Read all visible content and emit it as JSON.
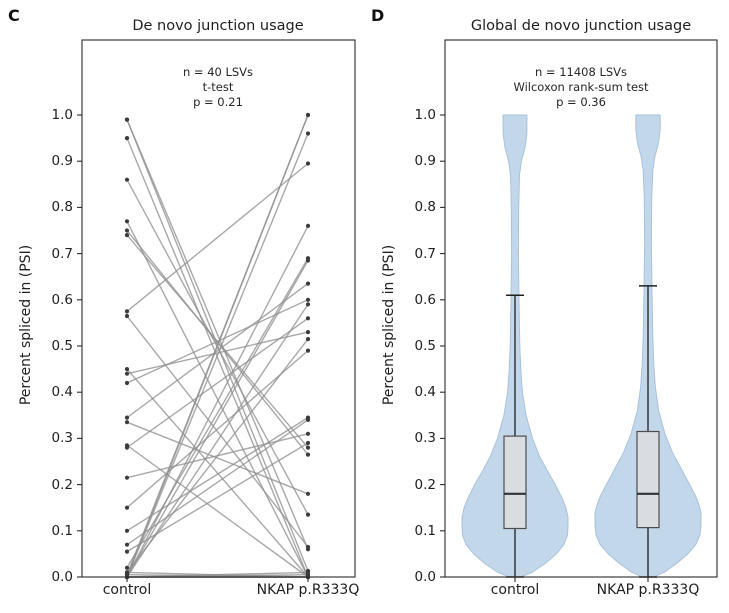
{
  "figure_background": "#ffffff",
  "style": {
    "pair_line_color": "#8f8f8f",
    "dot_color": "#3c3c3c",
    "violin_fill": "#c3d7ea",
    "violin_edge": "#a9c2dc",
    "box_fill": "#d9dde1",
    "box_edge": "#4d4d4d",
    "median_color": "#2e343b",
    "whisker_color": "#1f1f1f",
    "spine_color": "#2b2b2b"
  },
  "chart_data": [
    {
      "type": "line",
      "subtype": "paired-slope-chart",
      "panel_letter": "C",
      "title": "De novo junction usage",
      "annotation_lines": [
        "n = 40 LSVs",
        "t-test",
        "p = 0.21"
      ],
      "xlabel_categories": [
        "control",
        "NKAP p.R333Q"
      ],
      "ylabel": "Percent spliced in (PSI)",
      "ylim": [
        0.0,
        1.0
      ],
      "yticks": [
        0.0,
        0.1,
        0.2,
        0.3,
        0.4,
        0.5,
        0.6,
        0.7,
        0.8,
        0.9,
        1.0
      ],
      "grid": false,
      "pairs_control_to_variant": [
        [
          0.99,
          0.06
        ],
        [
          0.99,
          0.013
        ],
        [
          0.95,
          0.0
        ],
        [
          0.86,
          0.135
        ],
        [
          0.77,
          0.0
        ],
        [
          0.75,
          0.265
        ],
        [
          0.74,
          0.28
        ],
        [
          0.575,
          0.895
        ],
        [
          0.565,
          0.065
        ],
        [
          0.45,
          0.0
        ],
        [
          0.44,
          0.53
        ],
        [
          0.42,
          0.6
        ],
        [
          0.345,
          0.635
        ],
        [
          0.335,
          0.18
        ],
        [
          0.285,
          0.0
        ],
        [
          0.28,
          0.56
        ],
        [
          0.215,
          0.31
        ],
        [
          0.15,
          0.49
        ],
        [
          0.1,
          0.345
        ],
        [
          0.07,
          0.34
        ],
        [
          0.055,
          0.29
        ],
        [
          0.02,
          0.69
        ],
        [
          0.01,
          0.515
        ],
        [
          0.0,
          1.0
        ],
        [
          0.005,
          1.0
        ],
        [
          0.0,
          0.96
        ],
        [
          0.0,
          0.76
        ],
        [
          0.0,
          0.685
        ],
        [
          0.0,
          0.59
        ],
        [
          0.0,
          0.0
        ],
        [
          0.0,
          0.0
        ],
        [
          0.0,
          0.005
        ],
        [
          0.005,
          0.0
        ],
        [
          0.0,
          0.0
        ],
        [
          0.0,
          0.0
        ],
        [
          0.01,
          0.0
        ],
        [
          0.0,
          0.01
        ],
        [
          0.0,
          0.0
        ],
        [
          0.0,
          0.0
        ],
        [
          0.0,
          0.0
        ]
      ]
    },
    {
      "type": "area",
      "subtype": "violin-with-box",
      "panel_letter": "D",
      "title": "Global de novo junction usage",
      "annotation_lines": [
        "n = 11408 LSVs",
        "Wilcoxon rank-sum test",
        "p = 0.36"
      ],
      "xlabel_categories": [
        "control",
        "NKAP p.R333Q"
      ],
      "ylabel": "Percent spliced in (PSI)",
      "ylim": [
        0.0,
        1.0
      ],
      "yticks": [
        0.0,
        0.1,
        0.2,
        0.3,
        0.4,
        0.5,
        0.6,
        0.7,
        0.8,
        0.9,
        1.0
      ],
      "grid": false,
      "violins": [
        {
          "category": "control",
          "box": {
            "q1": 0.105,
            "median": 0.18,
            "q3": 0.305,
            "whisker_low": 0.0,
            "whisker_high": 0.61
          },
          "density_profile_psi_halfwidth": [
            [
              0.0,
              0.1
            ],
            [
              0.01,
              0.32
            ],
            [
              0.03,
              0.58
            ],
            [
              0.05,
              0.78
            ],
            [
              0.07,
              0.92
            ],
            [
              0.09,
              0.99
            ],
            [
              0.11,
              1.0
            ],
            [
              0.13,
              1.0
            ],
            [
              0.15,
              0.96
            ],
            [
              0.17,
              0.89
            ],
            [
              0.2,
              0.76
            ],
            [
              0.23,
              0.61
            ],
            [
              0.26,
              0.47
            ],
            [
              0.3,
              0.33
            ],
            [
              0.35,
              0.21
            ],
            [
              0.4,
              0.14
            ],
            [
              0.45,
              0.11
            ],
            [
              0.5,
              0.09
            ],
            [
              0.6,
              0.075
            ],
            [
              0.7,
              0.065
            ],
            [
              0.8,
              0.07
            ],
            [
              0.87,
              0.085
            ],
            [
              0.9,
              0.12
            ],
            [
              0.93,
              0.19
            ],
            [
              0.96,
              0.225
            ],
            [
              1.0,
              0.225
            ]
          ]
        },
        {
          "category": "NKAP p.R333Q",
          "box": {
            "q1": 0.107,
            "median": 0.18,
            "q3": 0.315,
            "whisker_low": 0.0,
            "whisker_high": 0.63
          },
          "density_profile_psi_halfwidth": [
            [
              0.0,
              0.1
            ],
            [
              0.01,
              0.3
            ],
            [
              0.03,
              0.55
            ],
            [
              0.05,
              0.75
            ],
            [
              0.07,
              0.9
            ],
            [
              0.09,
              0.98
            ],
            [
              0.11,
              1.0
            ],
            [
              0.14,
              1.0
            ],
            [
              0.16,
              0.95
            ],
            [
              0.18,
              0.88
            ],
            [
              0.21,
              0.74
            ],
            [
              0.24,
              0.6
            ],
            [
              0.27,
              0.46
            ],
            [
              0.31,
              0.32
            ],
            [
              0.36,
              0.2
            ],
            [
              0.41,
              0.14
            ],
            [
              0.46,
              0.11
            ],
            [
              0.52,
              0.09
            ],
            [
              0.62,
              0.075
            ],
            [
              0.72,
              0.065
            ],
            [
              0.82,
              0.07
            ],
            [
              0.88,
              0.09
            ],
            [
              0.91,
              0.13
            ],
            [
              0.94,
              0.2
            ],
            [
              0.97,
              0.23
            ],
            [
              1.0,
              0.23
            ]
          ]
        }
      ]
    }
  ]
}
